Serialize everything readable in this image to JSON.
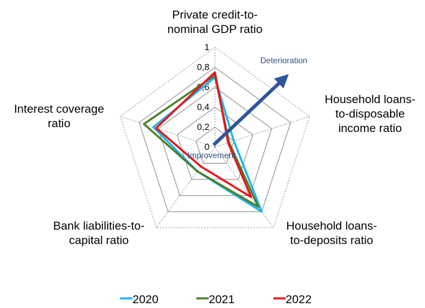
{
  "chart_data": {
    "type": "radar",
    "axes": [
      [
        "Private credit-to-",
        "nominal GDP ratio"
      ],
      [
        "Household loans-",
        "to-disposable",
        "income ratio"
      ],
      [
        "Household loans-",
        "to-deposits ratio"
      ],
      [
        "Bank liabilities-to-",
        "capital ratio"
      ],
      [
        "Interest coverage",
        "ratio"
      ]
    ],
    "ticks": [
      "0",
      "0,2",
      "0,4",
      "0,6",
      "0,8",
      "1"
    ],
    "rlim": [
      0,
      1
    ],
    "grid": true,
    "series": [
      {
        "name": "2020",
        "color": "#1fb4e8",
        "values": [
          0.7,
          0.2,
          0.8,
          0.3,
          0.65
        ]
      },
      {
        "name": "2021",
        "color": "#4a7f2e",
        "values": [
          0.72,
          0.15,
          0.74,
          0.3,
          0.75
        ]
      },
      {
        "name": "2022",
        "color": "#e8141c",
        "values": [
          0.75,
          0.14,
          0.62,
          0.24,
          0.62
        ]
      }
    ],
    "annotations": {
      "deterioration": "Deterioration",
      "improvement": "Improvement"
    },
    "legend_position": "bottom"
  }
}
